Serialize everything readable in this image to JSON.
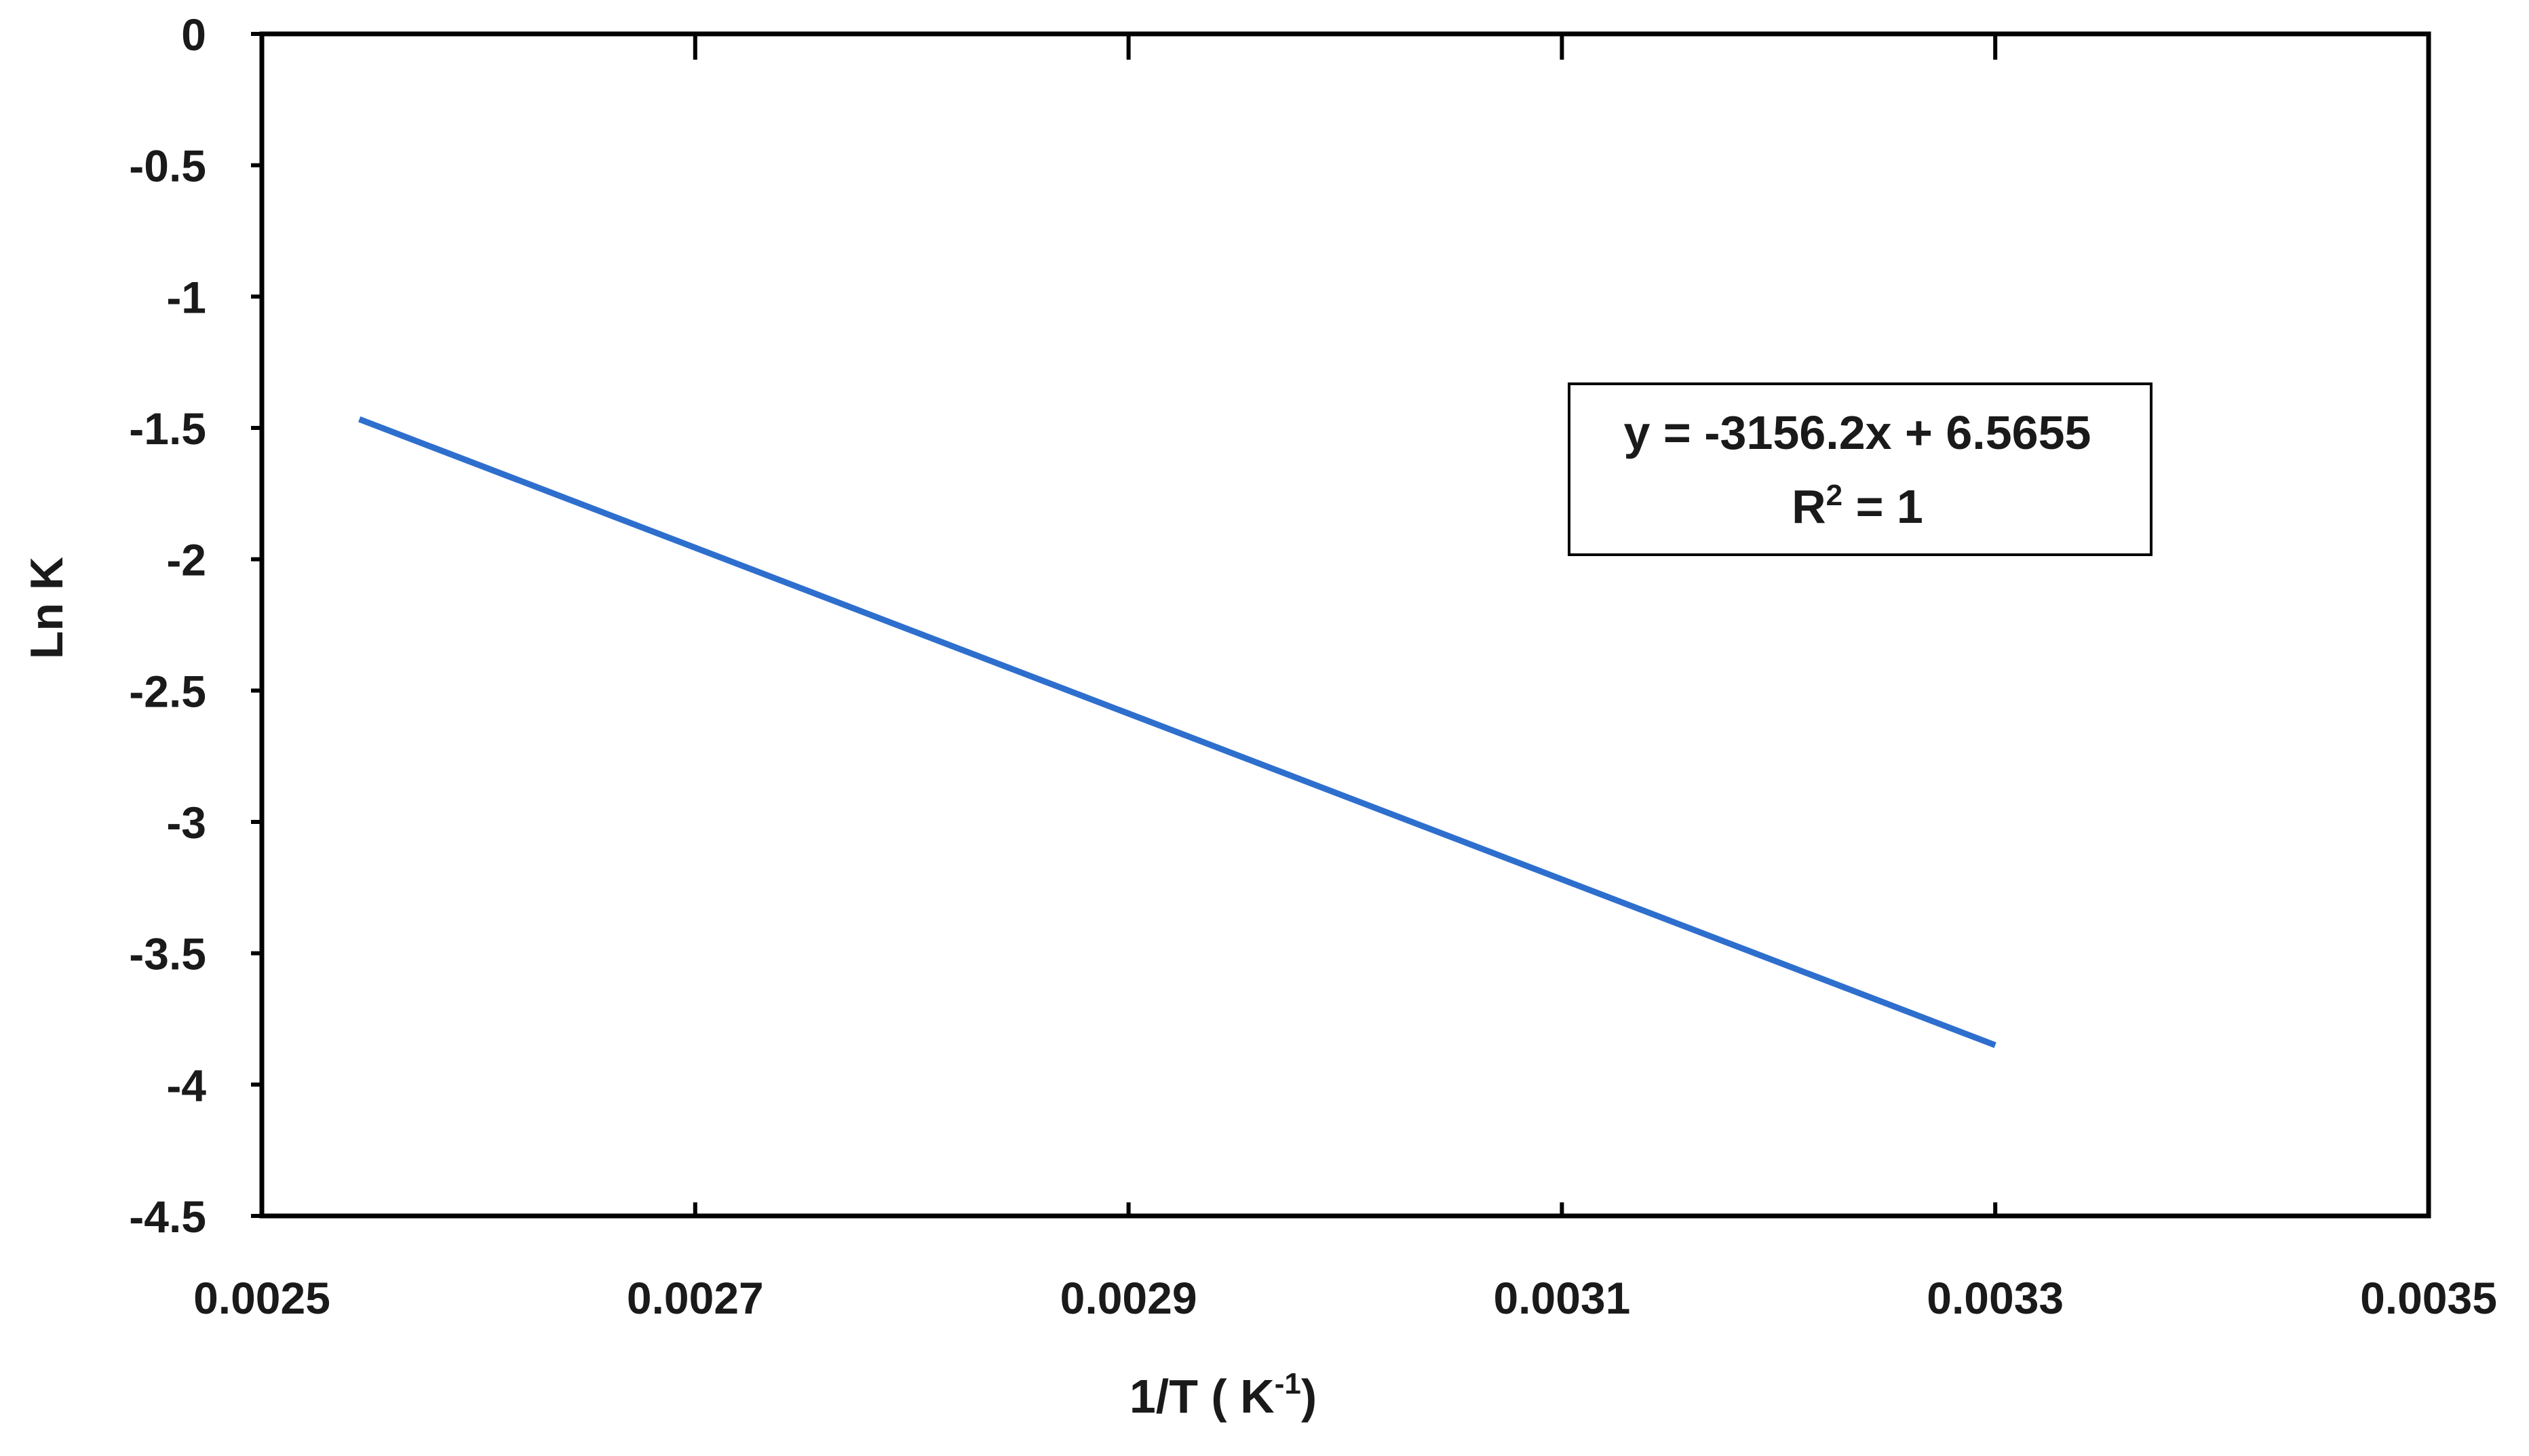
{
  "chart_data": {
    "type": "line",
    "title": "",
    "xlabel": "1/T  ( K",
    "xlabel_superscript": "-1",
    "xlabel_suffix": ")",
    "ylabel": "Ln K",
    "xlim": [
      0.0025,
      0.0035
    ],
    "ylim": [
      -4.5,
      0
    ],
    "x_ticks": [
      0.0025,
      0.0027,
      0.0029,
      0.0031,
      0.0033,
      0.0035
    ],
    "x_tick_labels": [
      "0.0025",
      "0.0027",
      "0.0029",
      "0.0031",
      "0.0033",
      "0.0035"
    ],
    "y_ticks": [
      0,
      -0.5,
      -1,
      -1.5,
      -2,
      -2.5,
      -3,
      -3.5,
      -4,
      -4.5
    ],
    "y_tick_labels": [
      "0",
      "-0.5",
      "-1",
      "-1.5",
      "-2",
      "-2.5",
      "-3",
      "-3.5",
      "-4",
      "-4.5"
    ],
    "grid": false,
    "legend": "none",
    "series": [
      {
        "color": "#2e6fce",
        "points": [
          {
            "x": 0.002545,
            "y": -1.467
          },
          {
            "x": 0.0033,
            "y": -3.85
          }
        ]
      }
    ],
    "annotation": {
      "equation": "y = -3156.2x  + 6.5655",
      "r2_prefix": "R",
      "r2_superscript": "2",
      "r2_suffix": " = 1"
    }
  }
}
